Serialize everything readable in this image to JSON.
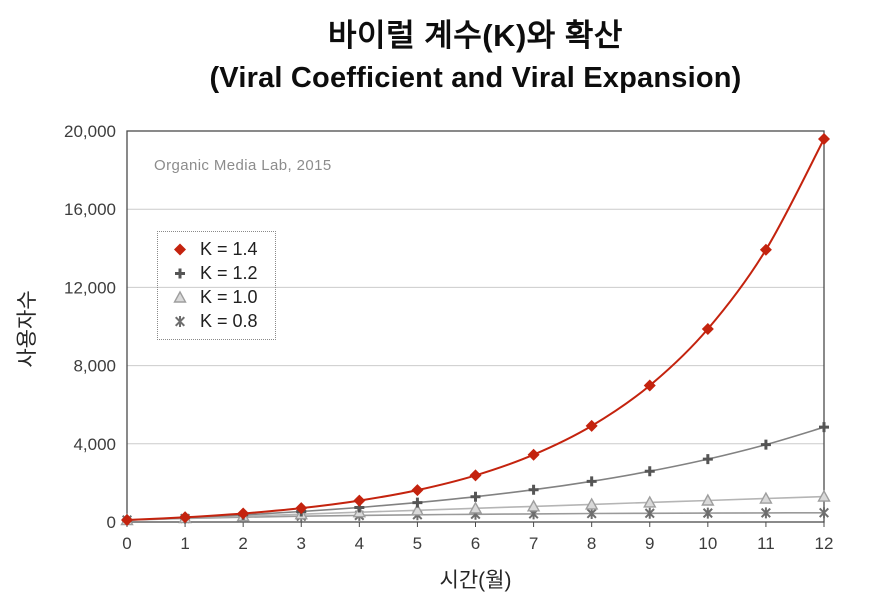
{
  "title": {
    "line1": "바이럴 계수(K)와 확산",
    "line2": "(Viral Coefficient and Viral Expansion)"
  },
  "watermark": "Organic Media Lab, 2015",
  "chart_data": {
    "type": "line",
    "title": "바이럴 계수(K)와 확산 (Viral Coefficient and Viral Expansion)",
    "xlabel": "시간(월)",
    "ylabel": "사용자수",
    "x": [
      0,
      1,
      2,
      3,
      4,
      5,
      6,
      7,
      8,
      9,
      10,
      11,
      12
    ],
    "x_tick_labels": [
      "0",
      "1",
      "2",
      "3",
      "4",
      "5",
      "6",
      "7",
      "8",
      "9",
      "10",
      "11",
      "12"
    ],
    "xlim": [
      0,
      12
    ],
    "ylim": [
      0,
      20000
    ],
    "y_ticks": [
      0,
      4000,
      8000,
      12000,
      16000,
      20000
    ],
    "y_tick_labels": [
      "0",
      "4,000",
      "8,000",
      "12,000",
      "16,000",
      "20,000"
    ],
    "grid": "horizontal",
    "grid_color": "#cccccc",
    "axis_color": "#4a4a4a",
    "tick_label_color": "#3d3d3d",
    "legend_position": "upper-left-inside",
    "series": [
      {
        "name": "K = 1.4",
        "marker": "diamond",
        "color": "#c4230e",
        "line_color": "#c4230e",
        "marker_fill": "#c4230e",
        "values": [
          100,
          240,
          436,
          710,
          1095,
          1632,
          2385,
          3440,
          4915,
          6981,
          9874,
          13924,
          19593
        ]
      },
      {
        "name": "K = 1.2",
        "marker": "plus",
        "color": "#555555",
        "line_color": "#828282",
        "marker_fill": "#555555",
        "values": [
          100,
          220,
          364,
          537,
          744,
          993,
          1292,
          1650,
          2080,
          2596,
          3215,
          3958,
          4850
        ]
      },
      {
        "name": "K = 1.0",
        "marker": "triangle",
        "color": "#9e9e9e",
        "line_color": "#b5b5b5",
        "marker_fill": "#d9d9d9",
        "values": [
          100,
          200,
          300,
          400,
          500,
          600,
          700,
          800,
          900,
          1000,
          1100,
          1200,
          1300
        ]
      },
      {
        "name": "K = 0.8",
        "marker": "star",
        "color": "#6e6e6e",
        "line_color": "#9a9a9a",
        "marker_fill": "#6e6e6e",
        "values": [
          100,
          180,
          244,
          295,
          336,
          369,
          395,
          416,
          433,
          446,
          457,
          466,
          472
        ]
      }
    ]
  }
}
